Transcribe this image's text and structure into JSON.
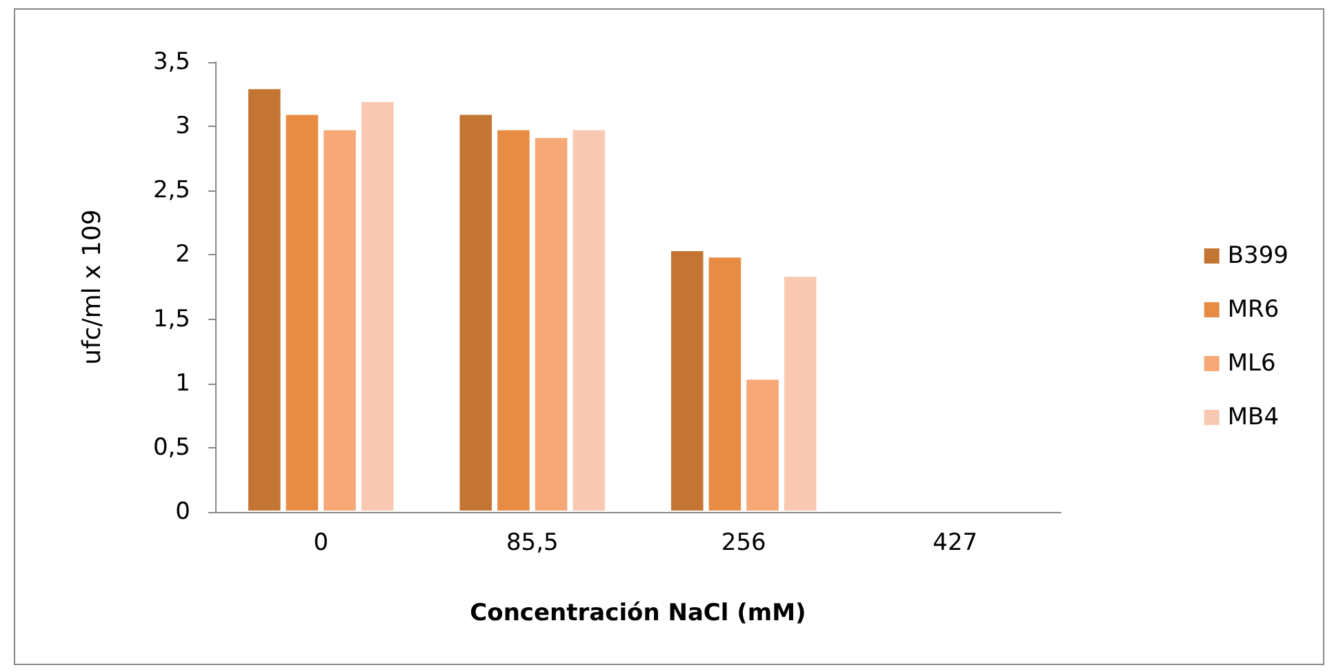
{
  "chart_data": {
    "type": "bar",
    "xlabel": "Concentración NaCl (mM)",
    "ylabel": "ufc/ml x 109",
    "categories": [
      "0",
      "85,5",
      "256",
      "427"
    ],
    "series": [
      {
        "name": "B399",
        "color": "#c47533",
        "values": [
          3.3,
          3.1,
          2.04,
          null
        ]
      },
      {
        "name": "MR6",
        "color": "#e88c44",
        "values": [
          3.1,
          2.98,
          1.99,
          null
        ]
      },
      {
        "name": "ML6",
        "color": "#f6a877",
        "values": [
          2.98,
          2.92,
          1.04,
          null
        ]
      },
      {
        "name": "MB4",
        "color": "#f8c9b0",
        "values": [
          3.2,
          2.98,
          1.84,
          null
        ]
      }
    ],
    "ylim": [
      0,
      3.5
    ],
    "yticks": [
      0,
      {
        "value": 0.5,
        "label": "0,5"
      },
      1,
      {
        "value": 1.5,
        "label": "1,5"
      },
      2,
      {
        "value": 2.5,
        "label": "2,5"
      },
      3,
      {
        "value": 3.5,
        "label": "3,5"
      }
    ],
    "grid": false,
    "legend": "right"
  }
}
